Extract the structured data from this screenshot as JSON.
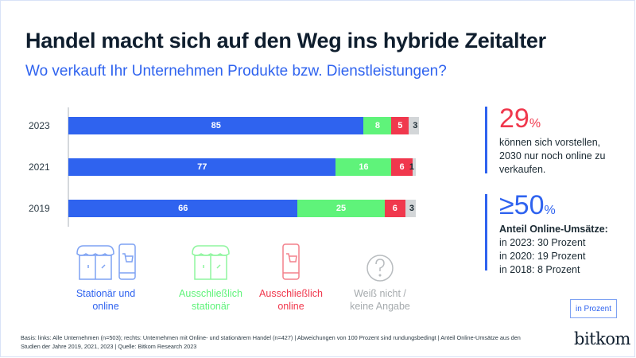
{
  "header": {
    "title": "Handel macht sich auf den Weg ins hybride Zeitalter",
    "subtitle": "Wo verkauft Ihr Unternehmen Produkte bzw. Dienstleistungen?"
  },
  "chart_data": {
    "type": "bar",
    "orientation": "horizontal-stacked",
    "title": "Handel macht sich auf den Weg ins hybride Zeitalter",
    "subtitle": "Wo verkauft Ihr Unternehmen Produkte bzw. Dienstleistungen?",
    "categories": [
      "2023",
      "2021",
      "2019"
    ],
    "series": [
      {
        "name": "Stationär und online",
        "color": "#2f63ef",
        "values": [
          85,
          77,
          66
        ]
      },
      {
        "name": "Ausschließlich stationär",
        "color": "#5ff37a",
        "values": [
          8,
          16,
          25
        ]
      },
      {
        "name": "Ausschließlich online",
        "color": "#f0384d",
        "values": [
          5,
          6,
          6
        ]
      },
      {
        "name": "Weiß nicht / keine Angabe",
        "color": "#d3d6d8",
        "values": [
          3,
          1,
          3
        ]
      }
    ],
    "unit": "in Prozent",
    "xlim": [
      0,
      100
    ],
    "grid": false,
    "legend_position": "bottom"
  },
  "legend": [
    {
      "line1": "Stationär und",
      "line2": "online",
      "color": "#2f63ef",
      "icon": "store-and-phone-icon"
    },
    {
      "line1": "Ausschließlich",
      "line2": "stationär",
      "color": "#5ff37a",
      "icon": "store-icon"
    },
    {
      "line1": "Ausschließlich",
      "line2": "online",
      "color": "#f0384d",
      "icon": "phone-cart-icon"
    },
    {
      "line1": "Weiß nicht /",
      "line2": "keine Angabe",
      "color": "#b8bcbf",
      "icon": "question-icon"
    }
  ],
  "sidebar": {
    "stat1": {
      "value": "29",
      "unit": "%",
      "color": "#f0384d",
      "lines": [
        "können sich vorstellen,",
        "2030 nur noch online zu",
        "verkaufen."
      ]
    },
    "stat2": {
      "value": "≥50",
      "unit": "%",
      "color": "#2f63ef",
      "heading": "Anteil Online-Umsätze:",
      "lines": [
        "in 2023: 30 Prozent",
        "in 2020: 19 Prozent",
        "in 2018: 8 Prozent"
      ]
    }
  },
  "unit_badge": "in Prozent",
  "logo": "bitkom",
  "footer": {
    "line1": "Basis: links: Alle Unternehmen (n=503); rechts: Unternehmen mit Online- und stationärem Handel (n=427) | Abweichungen von 100 Prozent sind rundungsbedingt | Anteil Online-Umsätze aus den",
    "line2": "Studien der Jahre 2019, 2021, 2023 | Quelle: Bitkom Research 2023"
  }
}
